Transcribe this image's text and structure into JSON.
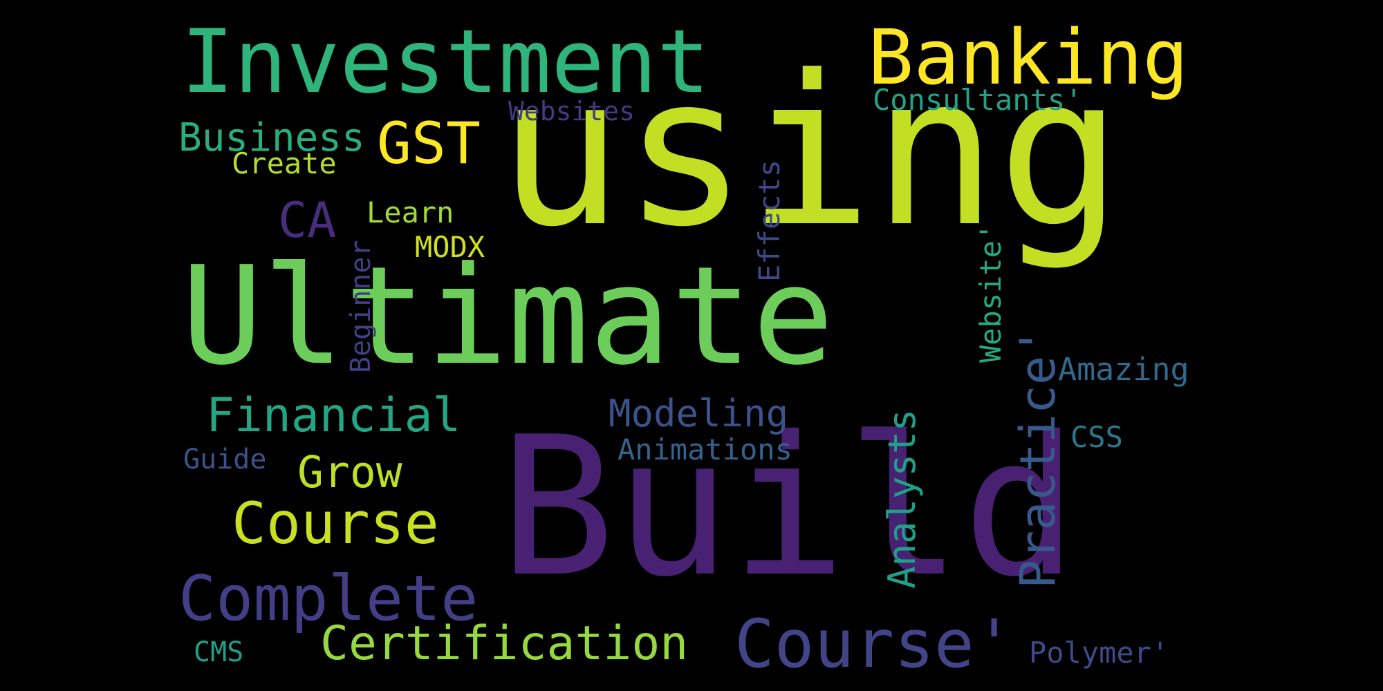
{
  "words": {
    "using": {
      "text": "using",
      "color": "#c2df23"
    },
    "ultimate": {
      "text": "Ultimate",
      "color": "#6ccd5a"
    },
    "build": {
      "text": "Build",
      "color": "#482173"
    },
    "investment": {
      "text": "Investment",
      "color": "#2fb47c"
    },
    "banking": {
      "text": "Banking",
      "color": "#fde725"
    },
    "gst": {
      "text": "GST",
      "color": "#fde725"
    },
    "business": {
      "text": "Business",
      "color": "#29af7f"
    },
    "create": {
      "text": "Create",
      "color": "#b5de2b"
    },
    "websites": {
      "text": "Websites",
      "color": "#443983"
    },
    "consultants": {
      "text": "Consultants'",
      "color": "#20a386"
    },
    "ca": {
      "text": "CA",
      "color": "#472d7b"
    },
    "learn": {
      "text": "Learn",
      "color": "#a0da39"
    },
    "modx": {
      "text": "MODX",
      "color": "#d0e11c"
    },
    "effects": {
      "text": "Effects",
      "color": "#3e4989"
    },
    "beginner": {
      "text": "Beginner",
      "color": "#433e85"
    },
    "website": {
      "text": "Website'",
      "color": "#25ab82"
    },
    "practice": {
      "text": "Practice'",
      "color": "#38598c"
    },
    "amazing": {
      "text": "Amazing",
      "color": "#31688e"
    },
    "financial": {
      "text": "Financial",
      "color": "#22a785"
    },
    "modeling": {
      "text": "Modeling",
      "color": "#3b528b"
    },
    "analysts": {
      "text": "Analysts",
      "color": "#1fa188"
    },
    "animations": {
      "text": "Animations",
      "color": "#33638d"
    },
    "css": {
      "text": "CSS",
      "color": "#2a788e"
    },
    "guide": {
      "text": "Guide",
      "color": "#3b528b"
    },
    "grow": {
      "text": "Grow",
      "color": "#bddf26"
    },
    "course": {
      "text": "Course",
      "color": "#c8e020"
    },
    "complete": {
      "text": "Complete",
      "color": "#433e85"
    },
    "certification": {
      "text": "Certification",
      "color": "#95d840"
    },
    "course2": {
      "text": "Course'",
      "color": "#414487"
    },
    "cms": {
      "text": "CMS",
      "color": "#1f9e89"
    },
    "polymer": {
      "text": "Polymer'",
      "color": "#3e4a89"
    }
  }
}
